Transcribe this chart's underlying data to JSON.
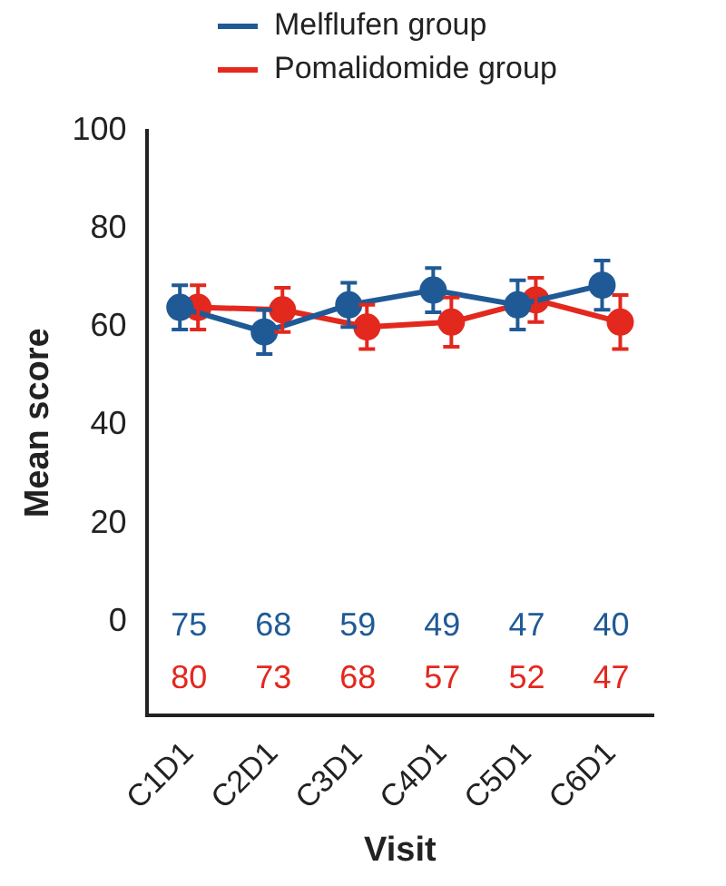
{
  "chart_data": {
    "type": "line",
    "xlabel": "Visit",
    "ylabel": "Mean score",
    "categories": [
      "C1D1",
      "C2D1",
      "C3D1",
      "C4D1",
      "C5D1",
      "C6D1"
    ],
    "series": [
      {
        "name": "Melflufen group",
        "color": "#1f5a96",
        "values": [
          64,
          59,
          64.5,
          67.5,
          64.5,
          68.5
        ],
        "errors": [
          4.5,
          4.5,
          4.5,
          4.5,
          5,
          5
        ]
      },
      {
        "name": "Pomalidomide group",
        "color": "#e3281e",
        "values": [
          64,
          63.5,
          60,
          61,
          65.5,
          61
        ],
        "errors": [
          4.5,
          4.5,
          4.5,
          5,
          4.5,
          5.5
        ]
      }
    ],
    "ylim": [
      -19,
      100
    ],
    "yticks": [
      0,
      20,
      40,
      60,
      80,
      100
    ],
    "grid": false,
    "legend": "top",
    "marker": "circle",
    "line_style": "solid",
    "annotations": [
      "75",
      "68",
      "59",
      "49",
      "47",
      "40",
      "80",
      "73",
      "68",
      "57",
      "52",
      "47"
    ]
  }
}
